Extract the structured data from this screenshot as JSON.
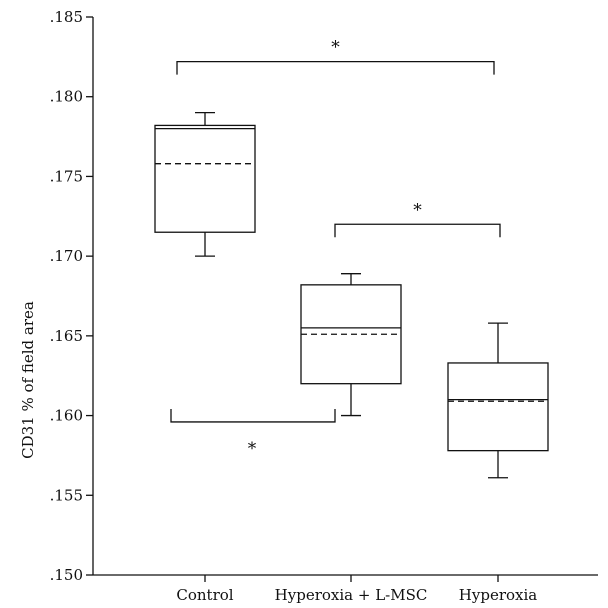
{
  "chart_data": {
    "type": "box",
    "ylabel": "CD31 % of field area",
    "ylim": [
      0.15,
      0.185
    ],
    "yticks": [
      ".150",
      ".155",
      ".160",
      ".165",
      ".170",
      ".175",
      ".180",
      ".185"
    ],
    "categories": [
      "Control",
      "Hyperoxia + L-MSC",
      "Hyperoxia"
    ],
    "boxes": [
      {
        "name": "Control",
        "whisker_low": 0.17,
        "q1": 0.1715,
        "median": 0.178,
        "mean": 0.1758,
        "q3": 0.1782,
        "whisker_high": 0.179
      },
      {
        "name": "Hyperoxia + L-MSC",
        "whisker_low": 0.16,
        "q1": 0.162,
        "median": 0.1655,
        "mean": 0.1651,
        "q3": 0.1682,
        "whisker_high": 0.1689
      },
      {
        "name": "Hyperoxia",
        "whisker_low": 0.1561,
        "q1": 0.1578,
        "median": 0.161,
        "mean": 0.1609,
        "q3": 0.1633,
        "whisker_high": 0.1658
      }
    ],
    "significance": [
      {
        "from": 0,
        "to": 2,
        "y": 0.1822,
        "position": "above",
        "label": "*"
      },
      {
        "from": 1,
        "to": 2,
        "y": 0.172,
        "position": "above",
        "label": "*"
      },
      {
        "from": 0,
        "to": 1,
        "y": 0.1596,
        "position": "below",
        "label": "*"
      }
    ]
  }
}
